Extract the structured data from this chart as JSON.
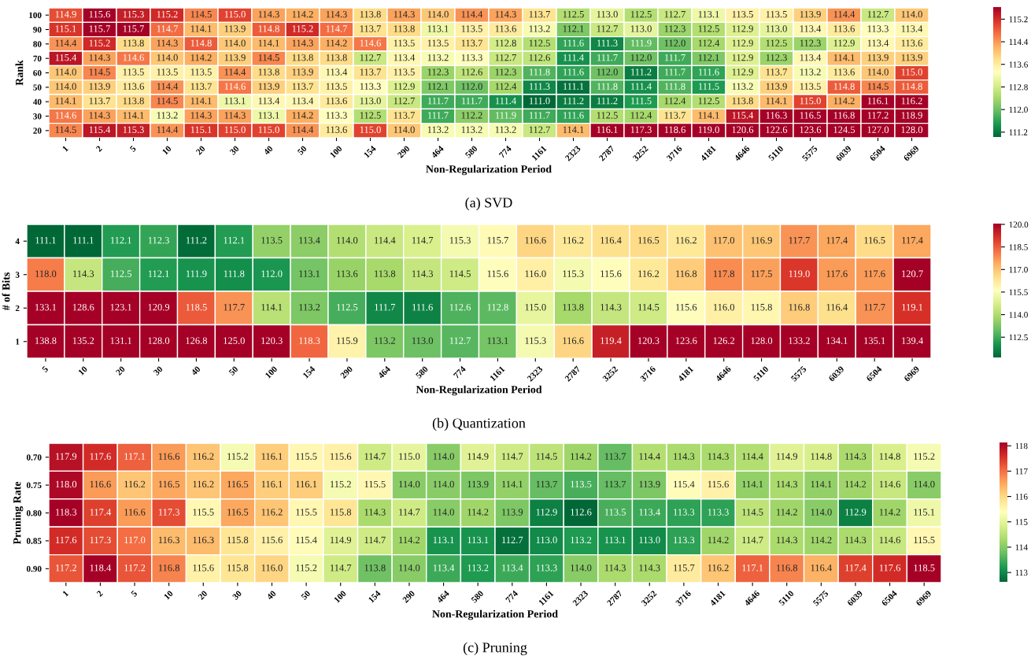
{
  "chart_data": [
    {
      "type": "heatmap",
      "title": "(a) SVD",
      "xlabel": "Non-Regularization Period",
      "ylabel": "Rank",
      "data_labels": true,
      "categories": [
        "1",
        "2",
        "5",
        "10",
        "20",
        "30",
        "40",
        "50",
        "100",
        "154",
        "290",
        "464",
        "580",
        "774",
        "1161",
        "2323",
        "2787",
        "3252",
        "3716",
        "4181",
        "4646",
        "5110",
        "5575",
        "6039",
        "6504",
        "6969"
      ],
      "y_categories": [
        "100",
        "90",
        "80",
        "70",
        "60",
        "50",
        "40",
        "30",
        "20"
      ],
      "cells": [
        [
          114.9,
          115.6,
          115.3,
          115.2,
          114.5,
          115.0,
          114.3,
          114.2,
          114.3,
          113.8,
          114.3,
          114.0,
          114.4,
          114.3,
          113.7,
          112.5,
          113.0,
          112.5,
          112.7,
          113.1,
          113.5,
          113.5,
          113.9,
          114.4,
          112.7,
          114.0
        ],
        [
          115.1,
          115.7,
          115.7,
          114.7,
          114.1,
          113.9,
          114.8,
          115.2,
          114.7,
          113.7,
          113.8,
          113.1,
          113.5,
          113.6,
          113.2,
          112.1,
          112.7,
          113.0,
          112.3,
          112.5,
          112.9,
          113.0,
          113.4,
          113.6,
          113.3,
          113.4
        ],
        [
          114.4,
          115.2,
          113.8,
          114.3,
          114.8,
          114.0,
          114.1,
          114.3,
          114.2,
          114.6,
          113.5,
          113.5,
          113.7,
          112.8,
          112.5,
          111.6,
          111.3,
          111.9,
          112.0,
          112.4,
          112.9,
          112.5,
          112.3,
          112.9,
          113.4,
          113.6
        ],
        [
          115.4,
          114.3,
          114.6,
          114.0,
          114.2,
          113.9,
          114.5,
          113.8,
          113.8,
          112.7,
          113.4,
          113.2,
          113.3,
          112.7,
          112.6,
          111.4,
          111.7,
          112.0,
          111.7,
          112.1,
          112.9,
          112.3,
          113.4,
          114.1,
          113.9,
          113.9
        ],
        [
          114.0,
          114.5,
          113.5,
          113.5,
          113.5,
          114.4,
          113.8,
          113.9,
          113.4,
          113.7,
          113.5,
          112.3,
          112.6,
          112.3,
          111.8,
          111.6,
          112.0,
          111.2,
          111.7,
          111.6,
          112.9,
          113.7,
          113.2,
          113.6,
          114.0,
          115.0
        ],
        [
          114.0,
          113.9,
          113.6,
          114.4,
          113.7,
          114.6,
          113.9,
          113.7,
          113.5,
          113.3,
          112.9,
          112.1,
          112.0,
          112.4,
          111.3,
          111.1,
          111.8,
          111.4,
          111.8,
          111.5,
          113.2,
          113.9,
          113.5,
          114.8,
          114.5,
          114.8
        ],
        [
          114.1,
          113.7,
          113.8,
          114.5,
          114.1,
          113.1,
          113.4,
          113.4,
          113.6,
          113.0,
          112.7,
          111.7,
          111.7,
          111.4,
          111.0,
          111.2,
          111.2,
          111.5,
          112.4,
          112.5,
          113.8,
          114.1,
          115.0,
          114.2,
          116.1,
          116.2
        ],
        [
          114.6,
          114.3,
          114.1,
          113.2,
          114.3,
          114.3,
          113.1,
          114.2,
          113.3,
          112.5,
          113.7,
          111.7,
          112.2,
          111.9,
          111.7,
          111.6,
          112.5,
          112.4,
          113.7,
          114.1,
          115.4,
          116.3,
          116.5,
          116.8,
          117.2,
          118.9
        ],
        [
          114.5,
          115.4,
          115.3,
          114.4,
          115.1,
          115.0,
          115.0,
          114.4,
          113.6,
          115.0,
          114.0,
          113.2,
          113.2,
          113.2,
          112.7,
          114.1,
          116.1,
          117.3,
          118.6,
          119.0,
          120.6,
          122.6,
          123.6,
          124.5,
          127.0,
          128.0
        ]
      ],
      "cell_labels": [
        [
          "114.9",
          "115.6",
          "115.3",
          "115.2",
          "114.5",
          "115.0",
          "114.3",
          "114.2",
          "114.3",
          "113.8",
          "114.3",
          "114.0",
          "114.4",
          "114.3",
          "113.7",
          "112.5",
          "113.0",
          "112.5",
          "112.7",
          "113.1",
          "113.5",
          "113.5",
          "113.9",
          "114.4",
          "112.7",
          "114.0"
        ],
        [
          "115.1",
          "115.7",
          "115.7",
          "114.7",
          "114.1",
          "113.9",
          "114.8",
          "115.2",
          "114.7",
          "113.7",
          "113.8",
          "113.1",
          "113.5",
          "113.6",
          "113.2",
          "112.1",
          "112.7",
          "113.0",
          "112.3",
          "112.5",
          "112.9",
          "113.0",
          "113.4",
          "113.6",
          "113.3",
          "113.4"
        ],
        [
          "114.4",
          "115.2",
          "113.8",
          "114.3",
          "114.8",
          "114.0",
          "114.1",
          "114.3",
          "114.2",
          "114.6",
          "113.5",
          "113.5",
          "113.7",
          "112.8",
          "112.5",
          "111.6",
          "111.3",
          "111.9",
          "112.0",
          "112.4",
          "112.9",
          "112.5",
          "112.3",
          "112.9",
          "113.4",
          "113.6"
        ],
        [
          "115.4",
          "114.3",
          "114.6",
          "114.0",
          "114.2",
          "113.9",
          "114.5",
          "113.8",
          "113.8",
          "112.7",
          "113.4",
          "113.2",
          "113.3",
          "112.7",
          "112.6",
          "111.4",
          "111.7",
          "112.0",
          "111.7",
          "112.1",
          "112.9",
          "112.3",
          "113.4",
          "114.1",
          "113.9",
          "113.9"
        ],
        [
          "114.0",
          "114.5",
          "113.5",
          "113.5",
          "113.5",
          "114.4",
          "113.8",
          "113.9",
          "113.4",
          "113.7",
          "113.5",
          "112.3",
          "112.6",
          "112.3",
          "111.8",
          "111.6",
          "112.0",
          "111.2",
          "111.7",
          "111.6",
          "112.9",
          "113.7",
          "113.2",
          "113.6",
          "114.0",
          "115.0"
        ],
        [
          "114.0",
          "113.9",
          "113.6",
          "114.4",
          "113.7",
          "114.6",
          "113.9",
          "113.7",
          "113.5",
          "113.3",
          "112.9",
          "112.1",
          "112.0",
          "112.4",
          "111.3",
          "111.1",
          "111.8",
          "111.4",
          "111.8",
          "111.5",
          "113.2",
          "113.9",
          "113.5",
          "114.8",
          "114.5",
          "114.8"
        ],
        [
          "114.1",
          "113.7",
          "113.8",
          "114.5",
          "114.1",
          "113.1",
          "113.4",
          "113.4",
          "113.6",
          "113.0",
          "112.7",
          "111.7",
          "111.7",
          "111.4",
          "111.0",
          "111.2",
          "111.2",
          "111.5",
          "112.4",
          "112.5",
          "113.8",
          "114.1",
          "115.0",
          "114.2",
          "116.1",
          "116.2"
        ],
        [
          "114.6",
          "114.3",
          "114.1",
          "113.2",
          "114.3",
          "114.3",
          "113.1",
          "114.2",
          "113.3",
          "112.5",
          "113.7",
          "111.7",
          "112.2",
          "111.9",
          "111.7",
          "111.6",
          "112.5",
          "112.4",
          "113.7",
          "114.1",
          "115.4",
          "116.3",
          "116.5",
          "116.8",
          "117.2",
          "118.9"
        ],
        [
          "114.5",
          "115.4",
          "115.3",
          "114.4",
          "115.1",
          "115.0",
          "115.0",
          "114.4",
          "113.6",
          "115.0",
          "114.0",
          "113.2",
          "113.2",
          "113.2",
          "112.7",
          "114.1",
          "116.1",
          "117.3",
          "118.6",
          "119.0",
          "120.6",
          "122.6",
          "123.6",
          "124.5",
          "127.0",
          "128.0"
        ]
      ],
      "clim": [
        111.0,
        115.6
      ],
      "cticks": [
        111.2,
        {
          "value": 112.0,
          "label": "112.0"
        },
        112.8,
        113.6,
        114.4,
        115.2
      ]
    },
    {
      "type": "heatmap",
      "title": "(b) Quantization",
      "xlabel": "Non-Regularization Period",
      "ylabel": "# of Bits",
      "data_labels": true,
      "categories": [
        "5",
        "10",
        "20",
        "30",
        "40",
        "50",
        "100",
        "154",
        "290",
        "464",
        "580",
        "774",
        "1161",
        "2323",
        "2787",
        "3252",
        "3716",
        "4181",
        "4646",
        "5110",
        "5575",
        "6039",
        "6504",
        "6969"
      ],
      "y_categories": [
        "4",
        "3",
        "2",
        "1"
      ],
      "cells": [
        [
          111.1,
          111.1,
          112.1,
          112.3,
          111.2,
          112.1,
          113.5,
          113.4,
          114.0,
          114.4,
          114.7,
          115.3,
          115.7,
          116.6,
          116.2,
          116.4,
          116.5,
          116.2,
          117.0,
          116.9,
          117.7,
          117.4,
          116.5,
          117.4
        ],
        [
          118.0,
          114.3,
          112.5,
          112.1,
          111.9,
          111.8,
          112.0,
          113.1,
          113.6,
          113.8,
          114.3,
          114.5,
          115.6,
          116.0,
          115.3,
          115.6,
          116.2,
          116.8,
          117.8,
          117.5,
          119.0,
          117.6,
          117.6,
          120.7
        ],
        [
          133.1,
          128.6,
          123.1,
          120.9,
          118.5,
          117.7,
          114.1,
          113.2,
          112.5,
          111.7,
          111.6,
          112.6,
          112.8,
          115.0,
          113.8,
          114.3,
          114.5,
          115.6,
          116.0,
          115.8,
          116.8,
          116.4,
          117.7,
          119.1
        ],
        [
          138.8,
          135.2,
          131.1,
          128.0,
          126.8,
          125.0,
          120.3,
          118.3,
          115.9,
          113.2,
          113.0,
          112.7,
          113.1,
          115.3,
          116.6,
          119.4,
          120.3,
          123.6,
          126.2,
          128.0,
          133.2,
          134.1,
          135.1,
          139.4
        ]
      ],
      "cell_labels": [
        [
          "111.1",
          "111.1",
          "112.1",
          "112.3",
          "111.2",
          "112.1",
          "113.5",
          "113.4",
          "114.0",
          "114.4",
          "114.7",
          "115.3",
          "115.7",
          "116.6",
          "116.2",
          "116.4",
          "116.5",
          "116.2",
          "117.0",
          "116.9",
          "117.7",
          "117.4",
          "116.5",
          "117.4"
        ],
        [
          "118.0",
          "114.3",
          "112.5",
          "112.1",
          "111.9",
          "111.8",
          "112.0",
          "113.1",
          "113.6",
          "113.8",
          "114.3",
          "114.5",
          "115.6",
          "116.0",
          "115.3",
          "115.6",
          "116.2",
          "116.8",
          "117.8",
          "117.5",
          "119.0",
          "117.6",
          "117.6",
          "120.7"
        ],
        [
          "133.1",
          "128.6",
          "123.1",
          "120.9",
          "118.5",
          "117.7",
          "114.1",
          "113.2",
          "112.5",
          "111.7",
          "111.6",
          "112.6",
          "112.8",
          "115.0",
          "113.8",
          "114.3",
          "114.5",
          "115.6",
          "116.0",
          "115.8",
          "116.8",
          "116.4",
          "117.7",
          "119.1"
        ],
        [
          "138.8",
          "135.2",
          "131.1",
          "128.0",
          "126.8",
          "125.0",
          "120.3",
          "118.3",
          "115.9",
          "113.2",
          "113.0",
          "112.7",
          "113.1",
          "115.3",
          "116.6",
          "119.4",
          "120.3",
          "123.6",
          "126.2",
          "128.0",
          "133.2",
          "134.1",
          "135.1",
          "139.4"
        ]
      ],
      "clim": [
        111.1,
        120.0
      ],
      "cticks": [
        112.5,
        {
          "value": 114.0,
          "label": "114.0"
        },
        115.5,
        {
          "value": 117.0,
          "label": "117.0"
        },
        118.5,
        {
          "value": 120.0,
          "label": "120.0"
        }
      ]
    },
    {
      "type": "heatmap",
      "title": "(c) Pruning",
      "xlabel": "Non-Regularization Period",
      "ylabel": "Pruning Rate",
      "data_labels": true,
      "categories": [
        "1",
        "2",
        "5",
        "10",
        "20",
        "30",
        "40",
        "50",
        "100",
        "154",
        "290",
        "464",
        "580",
        "774",
        "1161",
        "2323",
        "2787",
        "3252",
        "3716",
        "4181",
        "4646",
        "5110",
        "5575",
        "6039",
        "6504",
        "6969"
      ],
      "y_categories": [
        "0.70",
        "0.75",
        "0.80",
        "0.85",
        "0.90"
      ],
      "cells": [
        [
          117.9,
          117.6,
          117.1,
          116.6,
          116.2,
          115.2,
          116.1,
          115.5,
          115.6,
          114.7,
          115.0,
          114.0,
          114.9,
          114.7,
          114.5,
          114.2,
          113.7,
          114.4,
          114.3,
          114.3,
          114.4,
          114.9,
          114.8,
          114.3,
          114.8,
          115.2
        ],
        [
          118.0,
          116.6,
          116.2,
          116.5,
          116.2,
          116.5,
          116.1,
          116.1,
          115.2,
          115.5,
          114.0,
          114.0,
          113.9,
          114.1,
          113.7,
          113.5,
          113.7,
          113.9,
          115.4,
          115.6,
          114.1,
          114.3,
          114.1,
          114.2,
          114.6,
          114.0
        ],
        [
          118.3,
          117.4,
          116.6,
          117.3,
          115.5,
          116.5,
          116.2,
          115.5,
          115.8,
          114.3,
          114.7,
          114.0,
          114.2,
          113.9,
          112.9,
          112.6,
          113.5,
          113.4,
          113.3,
          113.3,
          114.5,
          114.2,
          114.0,
          112.9,
          114.2,
          115.1
        ],
        [
          117.6,
          117.3,
          117.0,
          116.3,
          116.3,
          115.8,
          115.6,
          115.4,
          114.9,
          114.7,
          114.2,
          113.1,
          113.1,
          112.7,
          113.0,
          113.2,
          113.1,
          113.0,
          113.3,
          114.2,
          114.7,
          114.3,
          114.2,
          114.3,
          114.6,
          115.5
        ],
        [
          117.2,
          118.4,
          117.2,
          116.8,
          115.6,
          115.8,
          116.0,
          115.2,
          114.7,
          113.8,
          114.0,
          113.4,
          113.2,
          113.4,
          113.3,
          114.0,
          114.3,
          114.3,
          115.7,
          116.2,
          117.1,
          116.8,
          116.4,
          117.4,
          117.6,
          118.5
        ]
      ],
      "cell_labels": [
        [
          "117.9",
          "117.6",
          "117.1",
          "116.6",
          "116.2",
          "115.2",
          "116.1",
          "115.5",
          "115.6",
          "114.7",
          "115.0",
          "114.0",
          "114.9",
          "114.7",
          "114.5",
          "114.2",
          "113.7",
          "114.4",
          "114.3",
          "114.3",
          "114.4",
          "114.9",
          "114.8",
          "114.3",
          "114.8",
          "115.2"
        ],
        [
          "118.0",
          "116.6",
          "116.2",
          "116.5",
          "116.2",
          "116.5",
          "116.1",
          "116.1",
          "115.2",
          "115.5",
          "114.0",
          "114.0",
          "113.9",
          "114.1",
          "113.7",
          "113.5",
          "113.7",
          "113.9",
          "115.4",
          "115.6",
          "114.1",
          "114.3",
          "114.1",
          "114.2",
          "114.6",
          "114.0"
        ],
        [
          "118.3",
          "117.4",
          "116.6",
          "117.3",
          "115.5",
          "116.5",
          "116.2",
          "115.5",
          "115.8",
          "114.3",
          "114.7",
          "114.0",
          "114.2",
          "113.9",
          "112.9",
          "112.6",
          "113.5",
          "113.4",
          "113.3",
          "113.3",
          "114.5",
          "114.2",
          "114.0",
          "112.9",
          "114.2",
          "115.1"
        ],
        [
          "117.6",
          "117.3",
          "117.0",
          "116.3",
          "116.3",
          "115.8",
          "115.6",
          "115.4",
          "114.9",
          "114.7",
          "114.2",
          "113.1",
          "113.1",
          "112.7",
          "113.0",
          "113.2",
          "113.1",
          "113.0",
          "113.3",
          "114.2",
          "114.7",
          "114.3",
          "114.2",
          "114.3",
          "114.6",
          "115.5"
        ],
        [
          "117.2",
          "118.4",
          "117.2",
          "116.8",
          "115.6",
          "115.8",
          "116.0",
          "115.2",
          "114.7",
          "113.8",
          "114.0",
          "113.4",
          "113.2",
          "113.4",
          "113.3",
          "114.0",
          "114.3",
          "114.3",
          "115.7",
          "116.2",
          "117.1",
          "116.8",
          "116.4",
          "117.4",
          "117.6",
          "118.5"
        ]
      ],
      "clim": [
        112.6,
        118.1
      ],
      "cticks": [
        113,
        114,
        115,
        116,
        117,
        118
      ]
    }
  ]
}
